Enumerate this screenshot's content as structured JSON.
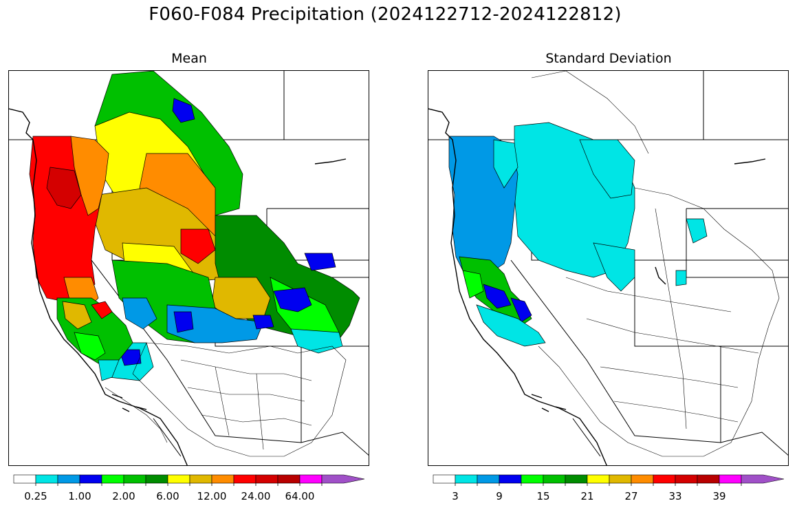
{
  "title": "F060-F084 Precipitation (2024122712-2024122812)",
  "panels": [
    {
      "id": "mean",
      "title": "Mean",
      "colorbar": {
        "tick_labels": [
          "0.25",
          "1.00",
          "2.00",
          "6.00",
          "12.00",
          "24.00",
          "64.00"
        ],
        "tick_bin_index": [
          1,
          3,
          5,
          7,
          9,
          11,
          13
        ]
      }
    },
    {
      "id": "stddev",
      "title": "Standard Deviation",
      "colorbar": {
        "tick_labels": [
          "3",
          "9",
          "15",
          "21",
          "27",
          "33",
          "39"
        ],
        "tick_bin_index": [
          1,
          3,
          5,
          7,
          9,
          11,
          13
        ]
      }
    }
  ],
  "colorbar_colors": [
    "#ffffff",
    "#00e5e5",
    "#0099e6",
    "#0000f0",
    "#00ff00",
    "#00c000",
    "#008c00",
    "#ffff00",
    "#e0b800",
    "#ff8c00",
    "#ff0000",
    "#d40000",
    "#b80000",
    "#ff00ff",
    "#a050c8"
  ],
  "colorbar_extend": "max",
  "region": "Western United States river basins"
}
